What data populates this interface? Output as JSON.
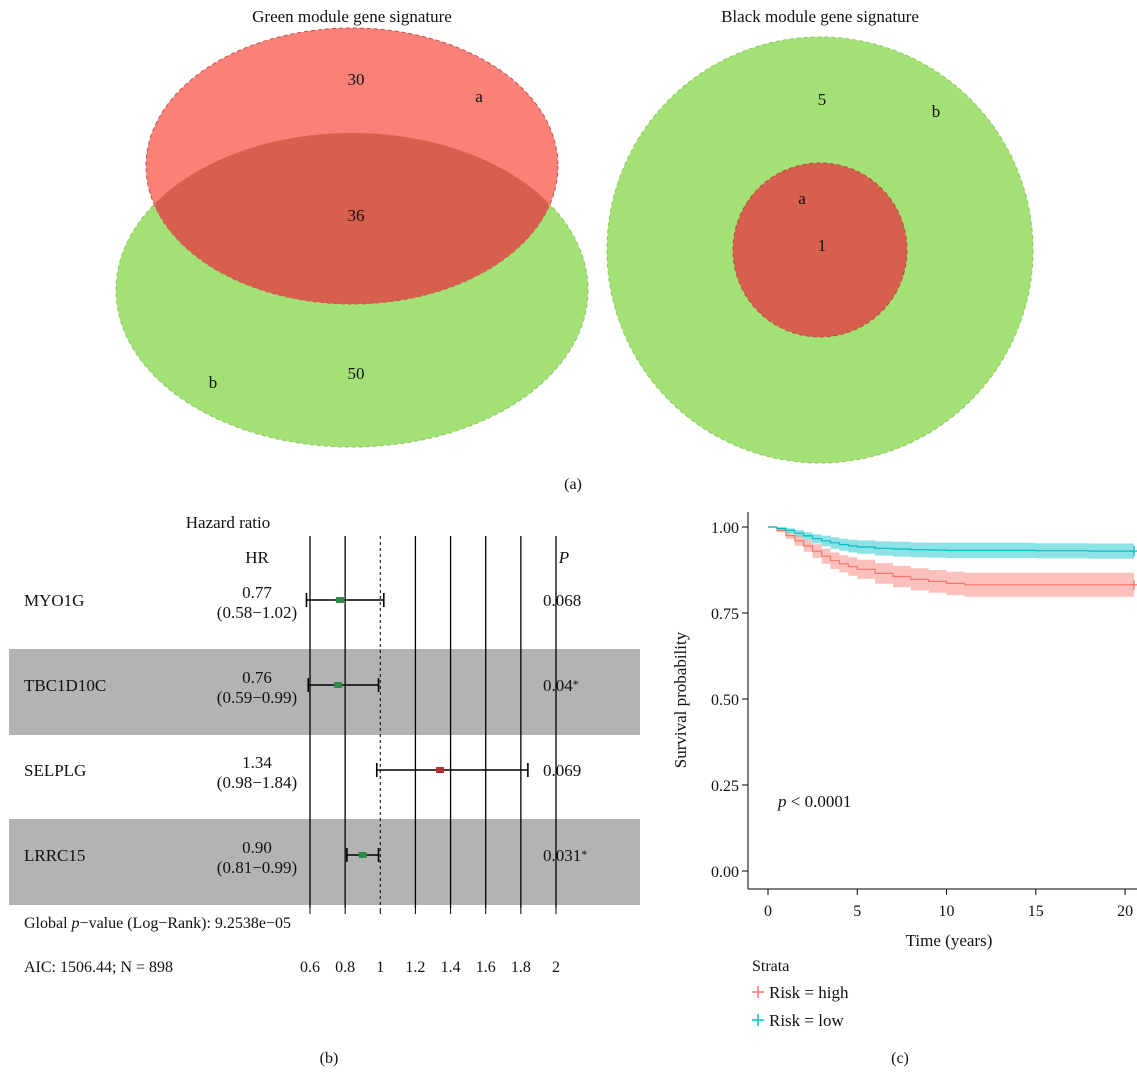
{
  "panel_labels": {
    "a": "(a)",
    "b": "(b)",
    "c": "(c)"
  },
  "colors": {
    "red": "#f8766d",
    "green": "#a3e075",
    "overlap": "#d6604d",
    "teal": "#00bfc4",
    "gray": "#b3b3b3"
  },
  "chart_data": [
    {
      "type": "venn",
      "title": "Green module gene signature",
      "sets": [
        {
          "label": "a",
          "color": "#f8766d",
          "only_count": 30
        },
        {
          "label": "b",
          "color": "#a3e075",
          "only_count": 50
        }
      ],
      "intersection": 36
    },
    {
      "type": "venn",
      "title": "Black module gene signature",
      "sets": [
        {
          "label": "a",
          "color": "#f8766d",
          "only_count": 0
        },
        {
          "label": "b",
          "color": "#a3e075",
          "only_count": 5
        }
      ],
      "intersection": 1
    },
    {
      "type": "forest",
      "title": "Hazard ratio",
      "col_hr": "HR",
      "col_p": "P",
      "rows": [
        {
          "gene": "MYO1G",
          "hr": 0.77,
          "ci_text": "(0.58−1.02)",
          "hr_text": "0.77",
          "lo": 0.58,
          "hi": 1.02,
          "p_text": "0.068",
          "sig": "",
          "shaded": false
        },
        {
          "gene": "TBC1D10C",
          "hr": 0.76,
          "ci_text": "(0.59−0.99)",
          "hr_text": "0.76",
          "lo": 0.59,
          "hi": 0.99,
          "p_text": "0.04",
          "sig": "*",
          "shaded": true
        },
        {
          "gene": "SELPLG",
          "hr": 1.34,
          "ci_text": "(0.98−1.84)",
          "hr_text": "1.34",
          "lo": 0.98,
          "hi": 1.84,
          "p_text": "0.069",
          "sig": "",
          "shaded": false
        },
        {
          "gene": "LRRC15",
          "hr": 0.9,
          "ci_text": "(0.81−0.99)",
          "hr_text": "0.90",
          "lo": 0.81,
          "hi": 0.99,
          "p_text": "0.031",
          "sig": "*",
          "shaded": true
        }
      ],
      "ticks": [
        0.6,
        0.8,
        1,
        1.2,
        1.4,
        1.6,
        1.8,
        2
      ],
      "tick_labels": [
        "0.6",
        "0.8",
        "1",
        "1.2",
        "1.4",
        "1.6",
        "1.8",
        "2"
      ],
      "footer_pvalue_prefix": "Global ",
      "footer_pvalue_p": "p",
      "footer_pvalue_rest": "−value (Log−Rank): 9.2538e−05",
      "footer_aic": "AIC: 1506.44; N = 898"
    },
    {
      "type": "line",
      "xlabel": "Time (years)",
      "ylabel": "Survival probability",
      "xlim": [
        0,
        20.5
      ],
      "ylim": [
        0,
        1
      ],
      "x_ticks": [
        0,
        5,
        10,
        15,
        20
      ],
      "x_tick_labels": [
        "0",
        "5",
        "10",
        "15",
        "20"
      ],
      "y_ticks": [
        0,
        0.25,
        0.5,
        0.75,
        1
      ],
      "y_tick_labels": [
        "0.00",
        "0.25",
        "0.50",
        "0.75",
        "1.00"
      ],
      "annotation_p": "p",
      "annotation_rest": " < 0.0001",
      "legend_title": "Strata",
      "series": [
        {
          "name": "Risk = high",
          "color": "#f8766d",
          "x": [
            0,
            0.5,
            1,
            1.5,
            2,
            2.5,
            3,
            3.5,
            4,
            4.5,
            5,
            6,
            7,
            8,
            9,
            10,
            11,
            12,
            13,
            14,
            15,
            16,
            17,
            18,
            19,
            20,
            20.5
          ],
          "y": [
            1.0,
            0.99,
            0.975,
            0.96,
            0.945,
            0.93,
            0.915,
            0.902,
            0.893,
            0.885,
            0.877,
            0.865,
            0.856,
            0.848,
            0.842,
            0.836,
            0.832,
            0.832,
            0.832,
            0.832,
            0.832,
            0.832,
            0.832,
            0.832,
            0.832,
            0.832,
            0.832
          ],
          "lower": [
            1.0,
            0.985,
            0.965,
            0.945,
            0.928,
            0.91,
            0.893,
            0.878,
            0.868,
            0.858,
            0.849,
            0.835,
            0.825,
            0.816,
            0.809,
            0.802,
            0.797,
            0.797,
            0.797,
            0.797,
            0.797,
            0.797,
            0.797,
            0.797,
            0.797,
            0.797,
            0.797
          ],
          "upper": [
            1.0,
            0.995,
            0.985,
            0.975,
            0.962,
            0.95,
            0.937,
            0.926,
            0.918,
            0.912,
            0.905,
            0.895,
            0.887,
            0.88,
            0.875,
            0.87,
            0.867,
            0.867,
            0.867,
            0.867,
            0.867,
            0.867,
            0.867,
            0.867,
            0.867,
            0.867,
            0.867
          ]
        },
        {
          "name": "Risk = low",
          "color": "#00bfc4",
          "x": [
            0,
            0.5,
            1,
            1.5,
            2,
            2.5,
            3,
            3.5,
            4,
            4.5,
            5,
            6,
            7,
            8,
            9,
            10,
            11,
            12,
            13,
            14,
            15,
            16,
            17,
            18,
            19,
            20,
            20.5
          ],
          "y": [
            1.0,
            0.996,
            0.99,
            0.982,
            0.974,
            0.966,
            0.96,
            0.954,
            0.949,
            0.945,
            0.942,
            0.938,
            0.936,
            0.934,
            0.933,
            0.932,
            0.932,
            0.932,
            0.932,
            0.932,
            0.931,
            0.931,
            0.931,
            0.93,
            0.93,
            0.93,
            0.93
          ],
          "lower": [
            1.0,
            0.992,
            0.983,
            0.972,
            0.962,
            0.952,
            0.944,
            0.937,
            0.931,
            0.926,
            0.922,
            0.917,
            0.914,
            0.912,
            0.911,
            0.91,
            0.91,
            0.91,
            0.91,
            0.91,
            0.909,
            0.909,
            0.909,
            0.908,
            0.908,
            0.908,
            0.908
          ],
          "upper": [
            1.0,
            0.999,
            0.996,
            0.991,
            0.985,
            0.979,
            0.975,
            0.97,
            0.966,
            0.963,
            0.961,
            0.958,
            0.957,
            0.955,
            0.954,
            0.954,
            0.954,
            0.954,
            0.954,
            0.954,
            0.953,
            0.953,
            0.953,
            0.952,
            0.952,
            0.952,
            0.952
          ]
        }
      ]
    }
  ]
}
